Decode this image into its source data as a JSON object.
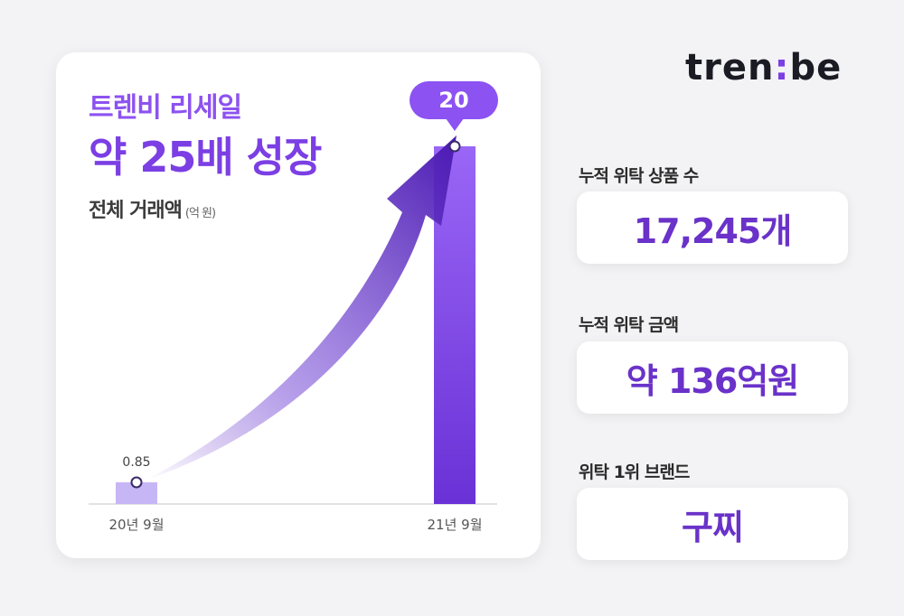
{
  "logo": {
    "left": "tren",
    "colon": ":",
    "right": "be"
  },
  "headline": {
    "subtitle": "트렌비 리세일",
    "title": "약 25배 성장",
    "caption": "전체 거래액",
    "unit": "(억 원)"
  },
  "chart_data": {
    "type": "bar",
    "categories": [
      "20년 9월",
      "21년 9월"
    ],
    "values": [
      0.85,
      20
    ],
    "data_labels": [
      "0.85",
      "20"
    ],
    "ylim": [
      0,
      20
    ],
    "grid": false,
    "colors": {
      "bar_small": "#c7b6f5",
      "bar_large": "#7d45e8",
      "arrow": "#5a24c2",
      "callout": "#8c52f2"
    }
  },
  "stats": [
    {
      "label": "누적 위탁 상품 수",
      "value": "17,245개"
    },
    {
      "label": "누적 위탁 금액",
      "value": "약 136억원"
    },
    {
      "label": "위탁 1위 브랜드",
      "value": "구찌"
    }
  ],
  "colors": {
    "accent": "#7b3fe4",
    "accent_light": "#8d52f0",
    "value_text": "#6a32c9",
    "background": "#f3f3f5"
  }
}
